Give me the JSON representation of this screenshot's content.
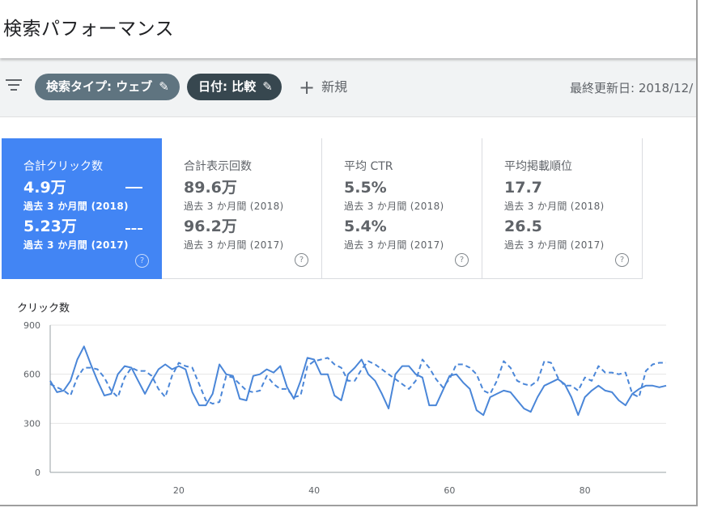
{
  "header": {
    "title": "検索パフォーマンス"
  },
  "filters": {
    "search_type": "検索タイプ: ウェブ",
    "date": "日付: 比較",
    "new_label": "新規",
    "last_updated": "最終更新日: 2018/12/"
  },
  "icons": {
    "filter": "filter-icon",
    "edit": "pencil-icon",
    "add": "plus-icon",
    "help": "question-circle-icon"
  },
  "colors": {
    "accent": "#4285f4",
    "series": "#4a86d8"
  },
  "metrics": [
    {
      "title": "合計クリック数",
      "value_a": "4.9万",
      "label_a": "過去 3 か月間 (2018)",
      "value_b": "5.23万",
      "label_b": "過去 3 か月間 (2017)",
      "active": true
    },
    {
      "title": "合計表示回数",
      "value_a": "89.6万",
      "label_a": "過去 3 か月間 (2018)",
      "value_b": "96.2万",
      "label_b": "過去 3 か月間 (2017)",
      "active": false
    },
    {
      "title": "平均 CTR",
      "value_a": "5.5%",
      "label_a": "過去 3 か月間 (2018)",
      "value_b": "5.4%",
      "label_b": "過去 3 か月間 (2017)",
      "active": false
    },
    {
      "title": "平均掲載順位",
      "value_a": "17.7",
      "label_a": "過去 3 か月間 (2018)",
      "value_b": "26.5",
      "label_b": "過去 3 か月間 (2017)",
      "active": false
    }
  ],
  "chart_data": {
    "type": "line",
    "ylabel": "クリック数",
    "ylim": [
      0,
      900
    ],
    "yticks": [
      0,
      300,
      600,
      900
    ],
    "xlim": [
      1,
      92
    ],
    "xticks": [
      20,
      40,
      60,
      80
    ],
    "grid": true,
    "series": [
      {
        "style": "solid",
        "values": [
          560,
          490,
          500,
          560,
          690,
          770,
          660,
          560,
          470,
          480,
          600,
          650,
          640,
          560,
          480,
          560,
          630,
          660,
          630,
          650,
          630,
          490,
          410,
          410,
          480,
          660,
          600,
          590,
          450,
          440,
          590,
          600,
          630,
          610,
          650,
          520,
          450,
          560,
          700,
          690,
          600,
          600,
          470,
          440,
          600,
          640,
          690,
          600,
          560,
          480,
          390,
          600,
          650,
          650,
          600,
          580,
          410,
          410,
          500,
          590,
          600,
          550,
          510,
          380,
          350,
          460,
          480,
          500,
          490,
          440,
          390,
          370,
          460,
          530,
          550,
          570,
          540,
          460,
          350,
          460,
          500,
          530,
          500,
          490,
          440,
          410,
          480,
          510,
          530,
          530,
          520,
          530
        ]
      },
      {
        "style": "dashed",
        "values": [
          540,
          520,
          500,
          470,
          580,
          640,
          640,
          630,
          580,
          500,
          460,
          580,
          640,
          620,
          620,
          590,
          510,
          460,
          590,
          670,
          650,
          640,
          540,
          440,
          420,
          430,
          590,
          580,
          540,
          500,
          490,
          500,
          590,
          540,
          510,
          510,
          460,
          470,
          650,
          680,
          690,
          700,
          660,
          640,
          560,
          560,
          630,
          680,
          660,
          630,
          600,
          570,
          540,
          510,
          560,
          690,
          640,
          570,
          520,
          570,
          660,
          660,
          640,
          600,
          500,
          480,
          560,
          680,
          640,
          560,
          540,
          530,
          560,
          680,
          670,
          580,
          530,
          530,
          500,
          580,
          560,
          650,
          610,
          610,
          600,
          610,
          480,
          460,
          620,
          660,
          670,
          670
        ]
      }
    ]
  }
}
